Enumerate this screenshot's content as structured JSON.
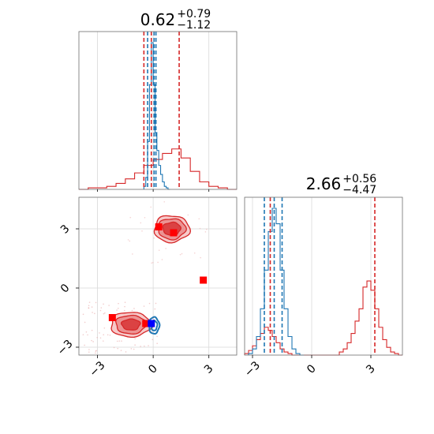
{
  "colors": {
    "red": "#d62728",
    "blue": "#1f77b4",
    "marker_red": "#ff0000",
    "marker_blue": "#0000ff",
    "grid": "#d9d9d9",
    "frame": "#6e6e6e"
  },
  "chart_data": [
    {
      "type": "histogram",
      "panel": "top-left",
      "title": {
        "main": "0.62",
        "sup": "+0.79",
        "sub": "−1.12"
      },
      "xlim": [
        -4,
        4.5
      ],
      "grid": true,
      "series": [
        {
          "name": "",
          "color": "red",
          "edges": [
            -4.0,
            -3.5,
            -3.0,
            -2.5,
            -2.0,
            -1.5,
            -1.0,
            -0.5,
            0.0,
            0.5,
            1.0,
            1.5,
            2.0,
            2.5,
            3.0,
            3.5,
            4.0,
            4.5
          ],
          "counts": [
            0,
            0.01,
            0.01,
            0.02,
            0.04,
            0.07,
            0.11,
            0.16,
            0.2,
            0.24,
            0.27,
            0.21,
            0.12,
            0.05,
            0.02,
            0.01,
            0
          ]
        },
        {
          "name": "",
          "color": "blue",
          "edges": [
            -0.5,
            -0.4,
            -0.3,
            -0.2,
            -0.1,
            0.0,
            0.1,
            0.2,
            0.3,
            0.4,
            0.5,
            0.6,
            0.7,
            0.8,
            0.9
          ],
          "counts": [
            0.02,
            0.08,
            0.32,
            0.7,
            0.98,
            0.7,
            0.38,
            0.26,
            0.16,
            0.1,
            0.05,
            0.02,
            0.01,
            0.0
          ]
        }
      ],
      "quantile_lines": [
        {
          "color": "red",
          "x": -0.5
        },
        {
          "color": "red",
          "x": -0.1
        },
        {
          "color": "red",
          "x": 1.4
        },
        {
          "color": "blue",
          "x": -0.3
        },
        {
          "color": "blue",
          "x": 0.05
        },
        {
          "color": "blue",
          "x": 0.15
        }
      ]
    },
    {
      "type": "histogram",
      "panel": "bottom-right",
      "title": {
        "main": "2.66",
        "sup": "+0.56",
        "sub": "−4.47"
      },
      "xlim": [
        -3.4,
        4.6
      ],
      "xticks": [
        -3,
        0,
        3
      ],
      "xtick_labels": [
        "−3",
        "0",
        "3"
      ],
      "grid": true,
      "series": [
        {
          "name": "",
          "color": "red",
          "edges": [
            -3.4,
            -3.2,
            -3.0,
            -2.8,
            -2.6,
            -2.4,
            -2.2,
            -2.0,
            -1.8,
            -1.6,
            -1.4,
            -1.2,
            -1.0,
            -0.8,
            -0.6,
            1.4,
            1.6,
            1.8,
            2.0,
            2.2,
            2.4,
            2.6,
            2.8,
            3.0,
            3.2,
            3.4,
            3.6,
            3.8,
            4.0,
            4.2,
            4.4,
            4.6
          ],
          "counts": [
            0.01,
            0.03,
            0.06,
            0.1,
            0.14,
            0.18,
            0.16,
            0.12,
            0.08,
            0.04,
            0.02,
            0.01,
            0.0,
            0.0,
            0.0,
            0.02,
            0.04,
            0.08,
            0.14,
            0.22,
            0.3,
            0.44,
            0.48,
            0.42,
            0.3,
            0.18,
            0.1,
            0.05,
            0.02,
            0.01,
            0.0
          ]
        },
        {
          "name": "",
          "color": "blue",
          "edges": [
            -3.2,
            -3.0,
            -2.8,
            -2.6,
            -2.4,
            -2.2,
            -2.0,
            -1.8,
            -1.6,
            -1.4,
            -1.2,
            -1.0,
            -0.8,
            -0.6,
            -0.4
          ],
          "counts": [
            0.01,
            0.04,
            0.12,
            0.3,
            0.55,
            0.8,
            0.95,
            0.85,
            0.55,
            0.3,
            0.12,
            0.04,
            0.01,
            0.0
          ]
        }
      ],
      "quantile_lines": [
        {
          "color": "red",
          "x": -2.1
        },
        {
          "color": "red",
          "x": 3.2
        },
        {
          "color": "blue",
          "x": -2.4
        },
        {
          "color": "blue",
          "x": -1.9
        },
        {
          "color": "blue",
          "x": -1.5
        }
      ]
    },
    {
      "type": "scatter",
      "panel": "bottom-left",
      "xlim": [
        -4,
        4.5
      ],
      "ylim": [
        -3.4,
        4.6
      ],
      "xticks": [
        -3,
        0,
        3
      ],
      "xtick_labels": [
        "−3",
        "0",
        "3"
      ],
      "yticks": [
        -3,
        0,
        3
      ],
      "ytick_labels": [
        "−3",
        "0",
        "3"
      ],
      "grid": true,
      "contours": [
        {
          "color": "red",
          "center": [
            1.0,
            3.0
          ],
          "rx": 1.9,
          "ry": 1.35,
          "levels": [
            1.0,
            0.78,
            0.5
          ]
        },
        {
          "color": "red",
          "center": [
            -1.2,
            -1.85
          ],
          "rx": 2.2,
          "ry": 1.25,
          "levels": [
            1.0,
            0.75,
            0.45
          ]
        },
        {
          "color": "blue",
          "center": [
            0.05,
            -1.9
          ],
          "rx": 0.55,
          "ry": 0.85,
          "levels": [
            1.0,
            0.6
          ]
        }
      ],
      "markers": [
        {
          "color": "marker_red",
          "x": 0.3,
          "y": 3.1
        },
        {
          "color": "marker_red",
          "x": 1.1,
          "y": 2.8
        },
        {
          "color": "marker_red",
          "x": 2.7,
          "y": 0.4
        },
        {
          "color": "marker_red",
          "x": -2.2,
          "y": -1.5
        },
        {
          "color": "marker_red",
          "x": -0.4,
          "y": -1.8
        },
        {
          "color": "marker_blue",
          "x": -0.1,
          "y": -1.8
        }
      ]
    }
  ]
}
